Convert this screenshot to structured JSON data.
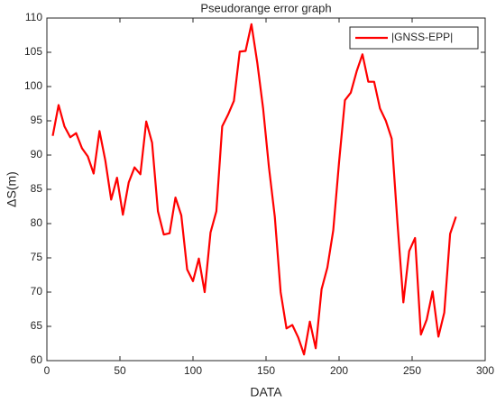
{
  "chart_data": {
    "type": "line",
    "title": "Pseudorange error graph",
    "x_label": "DATA",
    "y_label": "ΔS(m)",
    "x": [
      4,
      8,
      12,
      16,
      20,
      24,
      28,
      32,
      36,
      40,
      44,
      48,
      52,
      56,
      60,
      64,
      68,
      72,
      76,
      80,
      84,
      88,
      92,
      96,
      100,
      104,
      108,
      112,
      116,
      120,
      124,
      128,
      132,
      136,
      140,
      144,
      148,
      152,
      156,
      160,
      164,
      168,
      172,
      176,
      180,
      184,
      188,
      192,
      196,
      200,
      204,
      208,
      212,
      216,
      220,
      224,
      228,
      232,
      236,
      240,
      244,
      248,
      252,
      256,
      260,
      264,
      268,
      272,
      276,
      280
    ],
    "series": [
      {
        "name": "|GNSS-EPP|",
        "color": "#ff0000",
        "values": [
          92.8,
          97.3,
          94.2,
          92.6,
          93.2,
          91.0,
          89.8,
          87.3,
          93.5,
          89.2,
          83.5,
          86.7,
          81.3,
          86.0,
          88.2,
          87.2,
          94.9,
          91.8,
          81.8,
          78.4,
          78.6,
          83.8,
          81.2,
          73.3,
          71.6,
          74.9,
          70.0,
          78.7,
          81.8,
          94.2,
          95.9,
          97.9,
          105.1,
          105.2,
          109.1,
          103.5,
          96.8,
          88.2,
          81.0,
          70.0,
          64.7,
          65.2,
          63.4,
          60.9,
          65.7,
          61.8,
          70.4,
          73.6,
          79.0,
          89.0,
          98.0,
          99.1,
          102.2,
          104.7,
          100.7,
          100.7,
          96.8,
          95.0,
          92.4,
          80.0,
          68.5,
          76.0,
          77.9,
          63.8,
          66.0,
          70.1,
          63.5,
          67.0,
          78.5,
          81.0
        ]
      }
    ],
    "xlim": [
      0,
      300
    ],
    "xticks": [
      0,
      50,
      100,
      150,
      200,
      250,
      300
    ],
    "ylim": [
      60,
      110
    ],
    "yticks": [
      60,
      65,
      70,
      75,
      80,
      85,
      90,
      95,
      100,
      105,
      110
    ],
    "grid": false,
    "legend": "upper right"
  }
}
